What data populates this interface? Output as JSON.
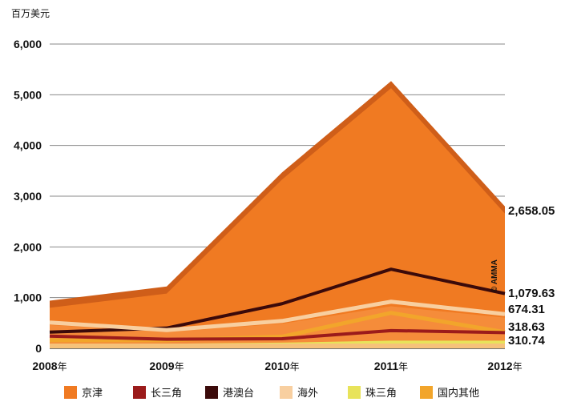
{
  "chart_data": {
    "type": "area",
    "ylabel": "百万美元",
    "ylim": [
      0,
      6000
    ],
    "yticks": [
      "0",
      "1,000",
      "2,000",
      "3,000",
      "4,000",
      "5,000",
      "6,000"
    ],
    "x_years": [
      "2008",
      "2009",
      "2010",
      "2011",
      "2012"
    ],
    "x_unit": "年",
    "grid": true,
    "legend_position": "bottom",
    "watermark": "© AMMA",
    "series": [
      {
        "name": "京津",
        "color": "#F07A22",
        "values": [
          800,
          1080,
          3330,
          5130,
          2658.05
        ]
      },
      {
        "name": "长三角",
        "color": "#9B1B1B",
        "values": [
          240,
          180,
          190,
          350,
          310.74
        ]
      },
      {
        "name": "港澳台",
        "color": "#3B0A0A",
        "values": [
          320,
          400,
          880,
          1560,
          1079.63
        ]
      },
      {
        "name": "海外",
        "color": "#F8CFA0",
        "values": [
          510,
          360,
          540,
          920,
          674.31
        ]
      },
      {
        "name": "珠三角",
        "color": "#E8E35A",
        "values": [
          50,
          60,
          80,
          120,
          120
        ]
      },
      {
        "name": "国内其他",
        "color": "#F2A52B",
        "values": [
          160,
          160,
          230,
          700,
          318.63
        ]
      }
    ],
    "end_labels": [
      "2,658.05",
      "1,079.63",
      "674.31",
      "318.63",
      "310.74"
    ]
  }
}
